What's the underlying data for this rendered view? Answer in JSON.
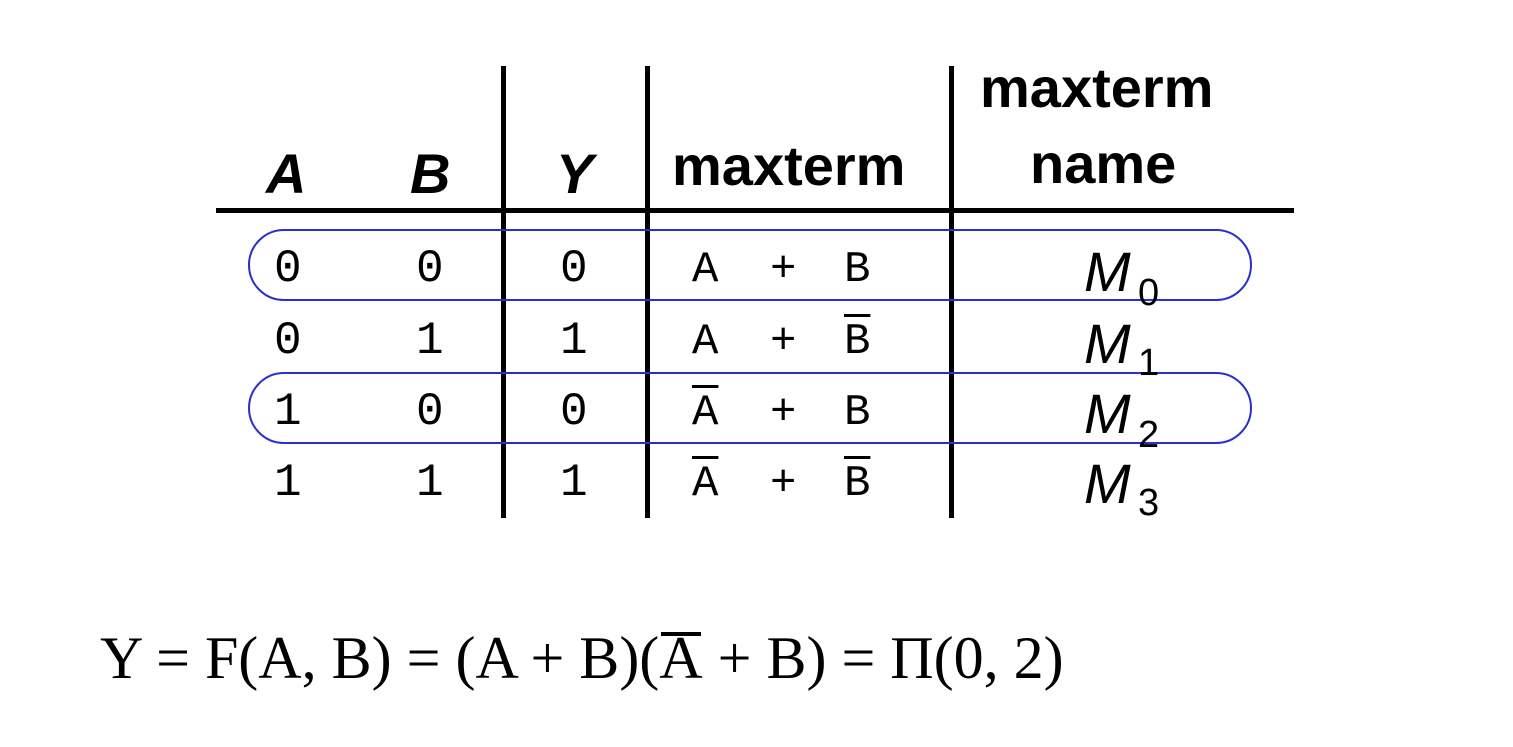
{
  "table": {
    "headers": {
      "a": "A",
      "b": "B",
      "y": "Y",
      "maxterm": "maxterm",
      "name_line1": "maxterm",
      "name_line2": "name"
    },
    "rows": [
      {
        "a": "0",
        "b": "0",
        "y": "0",
        "term_left": "A",
        "term_left_bar": false,
        "term_op": "+",
        "term_right": "B",
        "term_right_bar": false,
        "name": "M",
        "sub": "0",
        "circled": true
      },
      {
        "a": "0",
        "b": "1",
        "y": "1",
        "term_left": "A",
        "term_left_bar": false,
        "term_op": "+",
        "term_right": "B",
        "term_right_bar": true,
        "name": "M",
        "sub": "1",
        "circled": false
      },
      {
        "a": "1",
        "b": "0",
        "y": "0",
        "term_left": "A",
        "term_left_bar": true,
        "term_op": "+",
        "term_right": "B",
        "term_right_bar": false,
        "name": "M",
        "sub": "2",
        "circled": true
      },
      {
        "a": "1",
        "b": "1",
        "y": "1",
        "term_left": "A",
        "term_left_bar": true,
        "term_op": "+",
        "term_right": "B",
        "term_right_bar": true,
        "name": "M",
        "sub": "3",
        "circled": false
      }
    ]
  },
  "equation": {
    "part1": "Y = F(A, B) = (A + B)(",
    "abar": "A",
    "part2": " + B) = Π(0, 2)"
  },
  "colors": {
    "highlight": "#2a2fd0",
    "text": "#000000"
  }
}
